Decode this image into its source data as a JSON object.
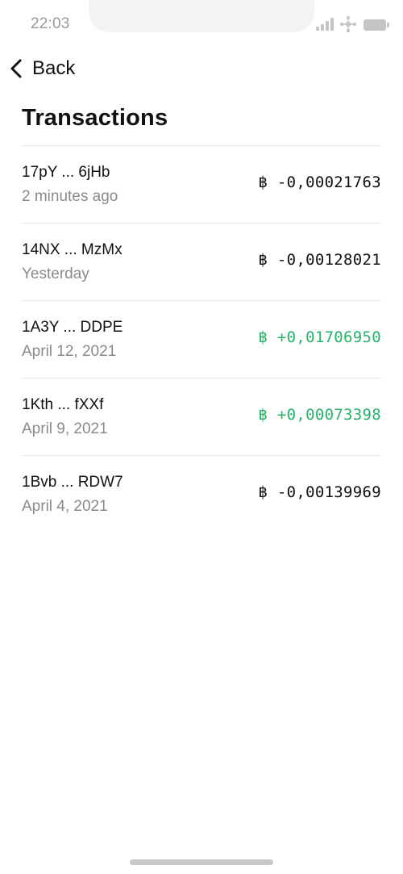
{
  "status_bar": {
    "time": "22:03",
    "icons": [
      "signal-icon",
      "wifi-icon",
      "battery-icon"
    ]
  },
  "nav": {
    "back_label": "Back",
    "back_icon": "chevron-left-icon"
  },
  "page": {
    "title": "Transactions"
  },
  "colors": {
    "positive": "#27b36a",
    "text": "#111111",
    "secondary": "#8a8a8a",
    "divider": "#e9e9e9"
  },
  "transactions": [
    {
      "address": "17pY ... 6jHb",
      "when": "2 minutes ago",
      "amount": "฿ -0,00021763",
      "direction": "out"
    },
    {
      "address": "14NX ... MzMx",
      "when": "Yesterday",
      "amount": "฿ -0,00128021",
      "direction": "out"
    },
    {
      "address": "1A3Y ... DDPE",
      "when": "April 12, 2021",
      "amount": "฿ +0,01706950",
      "direction": "in"
    },
    {
      "address": "1Kth ... fXXf",
      "when": "April 9, 2021",
      "amount": "฿ +0,00073398",
      "direction": "in"
    },
    {
      "address": "1Bvb ... RDW7",
      "when": "April 4, 2021",
      "amount": "฿ -0,00139969",
      "direction": "out"
    }
  ]
}
